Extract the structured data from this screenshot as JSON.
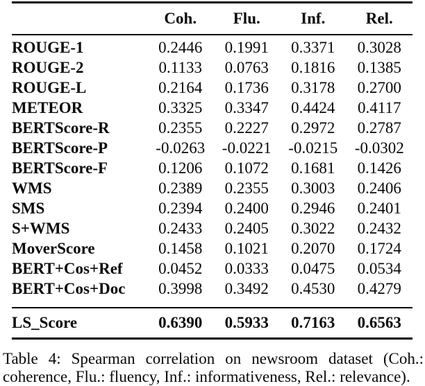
{
  "table": {
    "columns": [
      "Coh.",
      "Flu.",
      "Inf.",
      "Rel."
    ],
    "rows": [
      {
        "label": "ROUGE-1",
        "values": [
          "0.2446",
          "0.1991",
          "0.3371",
          "0.3028"
        ]
      },
      {
        "label": "ROUGE-2",
        "values": [
          "0.1133",
          "0.0763",
          "0.1816",
          "0.1385"
        ]
      },
      {
        "label": "ROUGE-L",
        "values": [
          "0.2164",
          "0.1736",
          "0.3178",
          "0.2700"
        ]
      },
      {
        "label": "METEOR",
        "values": [
          "0.3325",
          "0.3347",
          "0.4424",
          "0.4117"
        ]
      },
      {
        "label": "BERTScore-R",
        "values": [
          "0.2355",
          "0.2227",
          "0.2972",
          "0.2787"
        ]
      },
      {
        "label": "BERTScore-P",
        "values": [
          "-0.0263",
          "-0.0221",
          "-0.0215",
          "-0.0302"
        ]
      },
      {
        "label": "BERTScore-F",
        "values": [
          "0.1206",
          "0.1072",
          "0.1681",
          "0.1426"
        ]
      },
      {
        "label": "WMS",
        "values": [
          "0.2389",
          "0.2355",
          "0.3003",
          "0.2406"
        ]
      },
      {
        "label": "SMS",
        "values": [
          "0.2394",
          "0.2400",
          "0.2946",
          "0.2401"
        ]
      },
      {
        "label": "S+WMS",
        "values": [
          "0.2433",
          "0.2405",
          "0.3022",
          "0.2432"
        ]
      },
      {
        "label": "MoverScore",
        "values": [
          "0.1458",
          "0.1021",
          "0.2070",
          "0.1724"
        ]
      },
      {
        "label": "BERT+Cos+Ref",
        "values": [
          "0.0452",
          "0.0333",
          "0.0475",
          "0.0534"
        ]
      },
      {
        "label": "BERT+Cos+Doc",
        "values": [
          "0.3998",
          "0.3492",
          "0.4530",
          "0.4279"
        ]
      }
    ],
    "final_row": {
      "label": "LS_Score",
      "values": [
        "0.6390",
        "0.5933",
        "0.7163",
        "0.6563"
      ]
    }
  },
  "caption": "Table 4: Spearman correlation on newsroom dataset (Coh.: coherence, Flu.: fluency, Inf.: informativeness, Rel.: relevance)."
}
